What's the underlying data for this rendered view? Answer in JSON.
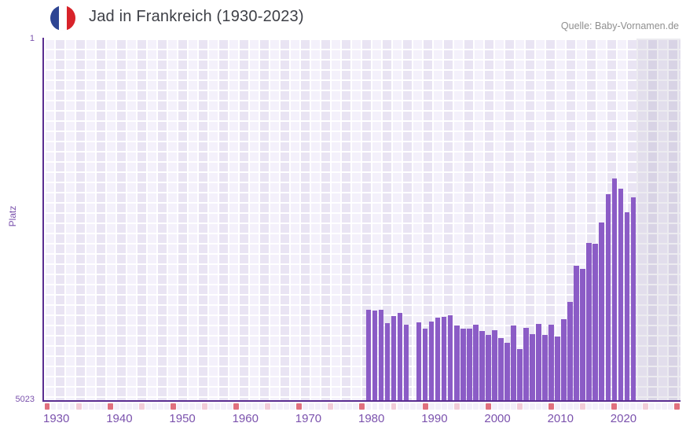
{
  "header": {
    "title": "Jad in Frankreich (1930-2023)",
    "source": "Quelle: Baby-Vornamen.de",
    "flag_icon": "france-flag-icon"
  },
  "chart_data": {
    "type": "bar",
    "title": "Jad in Frankreich (1930-2023)",
    "xlabel": "",
    "ylabel": "Platz",
    "y_axis": {
      "top_label": "1",
      "bottom_label": "5023",
      "min": 1,
      "max": 5023,
      "inverted": true
    },
    "x_axis": {
      "axis_start_year": 1930,
      "axis_end_year": 2030,
      "data_end_year": 2023,
      "tick_labels": [
        "1930",
        "1940",
        "1950",
        "1960",
        "1970",
        "1980",
        "1990",
        "2000",
        "2010",
        "2020"
      ],
      "decade_tick_interval": 10,
      "half_decade_tick_interval": 5
    },
    "legend": "none",
    "grid": "waffle",
    "points": [
      {
        "year": 1981,
        "rank": 3770
      },
      {
        "year": 1982,
        "rank": 3781
      },
      {
        "year": 1983,
        "rank": 3770
      },
      {
        "year": 1984,
        "rank": 3955
      },
      {
        "year": 1985,
        "rank": 3857
      },
      {
        "year": 1986,
        "rank": 3814
      },
      {
        "year": 1987,
        "rank": 3977
      },
      {
        "year": 1989,
        "rank": 3944
      },
      {
        "year": 1990,
        "rank": 4032
      },
      {
        "year": 1991,
        "rank": 3933
      },
      {
        "year": 1992,
        "rank": 3879
      },
      {
        "year": 1993,
        "rank": 3868
      },
      {
        "year": 1994,
        "rank": 3846
      },
      {
        "year": 1995,
        "rank": 3988
      },
      {
        "year": 1996,
        "rank": 4032
      },
      {
        "year": 1997,
        "rank": 4032
      },
      {
        "year": 1998,
        "rank": 3977
      },
      {
        "year": 1999,
        "rank": 4064
      },
      {
        "year": 2000,
        "rank": 4119
      },
      {
        "year": 2001,
        "rank": 4053
      },
      {
        "year": 2002,
        "rank": 4162
      },
      {
        "year": 2003,
        "rank": 4227
      },
      {
        "year": 2004,
        "rank": 3988
      },
      {
        "year": 2005,
        "rank": 4314
      },
      {
        "year": 2006,
        "rank": 4021
      },
      {
        "year": 2007,
        "rank": 4108
      },
      {
        "year": 2008,
        "rank": 3966
      },
      {
        "year": 2009,
        "rank": 4119
      },
      {
        "year": 2010,
        "rank": 3977
      },
      {
        "year": 2011,
        "rank": 4141
      },
      {
        "year": 2012,
        "rank": 3901
      },
      {
        "year": 2013,
        "rank": 3661
      },
      {
        "year": 2014,
        "rank": 3160
      },
      {
        "year": 2015,
        "rank": 3204
      },
      {
        "year": 2016,
        "rank": 2844
      },
      {
        "year": 2017,
        "rank": 2855
      },
      {
        "year": 2018,
        "rank": 2561
      },
      {
        "year": 2019,
        "rank": 2158
      },
      {
        "year": 2020,
        "rank": 1940
      },
      {
        "year": 2021,
        "rank": 2082
      },
      {
        "year": 2022,
        "rank": 2419
      },
      {
        "year": 2023,
        "rank": 2202
      }
    ],
    "missing_years": [
      1988
    ],
    "colors": {
      "bar": "#8b5cc6",
      "axis": "#5a2d91",
      "label_purple": "#7b52ad",
      "tick_decade": "#e0707e",
      "tick_half_decade": "#f2ccd8",
      "tick_plain": "#f3f0fa",
      "future_shade": "rgba(109,99,138,0.13)",
      "title_text": "#3d3f46",
      "source_text": "#8f8f8f",
      "flag_blue": "#2e4593",
      "flag_white": "#ffffff",
      "flag_red": "#d8232a"
    }
  }
}
